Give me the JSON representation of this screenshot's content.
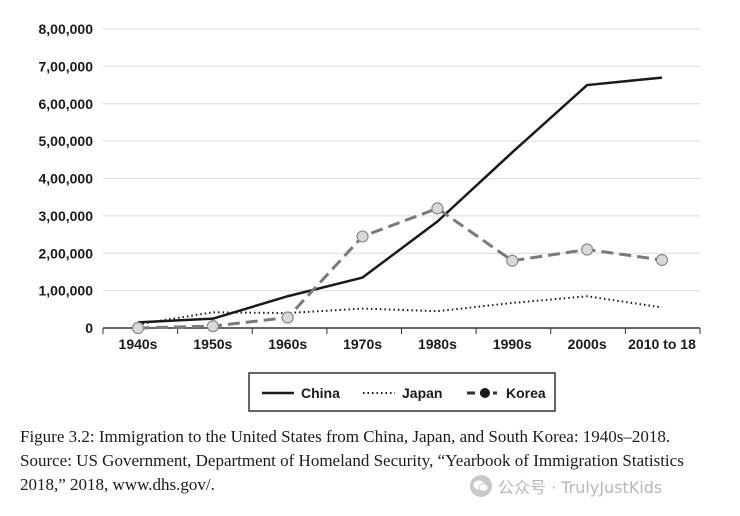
{
  "chart_data": {
    "type": "line",
    "categories": [
      "1940s",
      "1950s",
      "1960s",
      "1970s",
      "1980s",
      "1990s",
      "2000s",
      "2010 to 18"
    ],
    "yticks": [
      "8,00,000",
      "7,00,000",
      "6,00,000",
      "5,00,000",
      "4,00,000",
      "3,00,000",
      "2,00,000",
      "1,00,000",
      "0"
    ],
    "ylim": [
      0,
      800000
    ],
    "grid": true,
    "legend_position": "bottom",
    "series": [
      {
        "name": "China",
        "style": "solid",
        "color": "#1a1a1a",
        "values": [
          15000,
          25000,
          85000,
          135000,
          285000,
          470000,
          650000,
          670000
        ]
      },
      {
        "name": "Japan",
        "style": "dotted",
        "color": "#1a1a1a",
        "values": [
          10000,
          42000,
          40000,
          52000,
          45000,
          67000,
          85000,
          55000
        ]
      },
      {
        "name": "Korea",
        "style": "dashed-marker",
        "color": "#7a7a7a",
        "values": [
          0,
          5000,
          28000,
          245000,
          320000,
          180000,
          210000,
          182000
        ]
      }
    ]
  },
  "caption": "Figure 3.2: Immigration to the United States from China, Japan, and South Korea: 1940s–2018. Source: US Government, Department of Homeland Security, “Yearbook of Immigration Statistics 2018,” 2018, www.dhs.gov/.",
  "watermark": {
    "icon": "wechat-icon",
    "text": "公众号 · TrulyJustKids"
  }
}
